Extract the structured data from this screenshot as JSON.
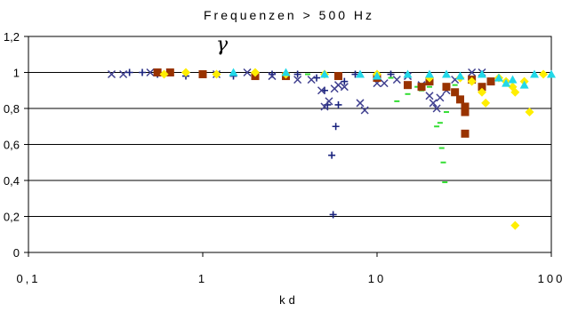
{
  "chart_data": {
    "type": "scatter",
    "title": "Frequenzen > 500 Hz",
    "xlabel": "kd",
    "ylabel": "γ",
    "xscale": "log",
    "xlim": [
      0.1,
      100
    ],
    "ylim": [
      0,
      1.2
    ],
    "xticks": [
      "0,1",
      "1",
      "10",
      "100"
    ],
    "yticks": [
      "0",
      "0,2",
      "0,4",
      "0,6",
      "0,8",
      "1",
      "1,2"
    ],
    "grid": "horizontal",
    "legend": "none",
    "series": [
      {
        "marker": "plus",
        "color": "#1a237e",
        "points": [
          [
            0.38,
            1.0
          ],
          [
            0.45,
            1.0
          ],
          [
            0.55,
            0.99
          ],
          [
            0.8,
            0.98
          ],
          [
            1.5,
            0.98
          ],
          [
            2.5,
            0.99
          ],
          [
            3.5,
            0.99
          ],
          [
            4.5,
            0.97
          ],
          [
            5,
            0.9
          ],
          [
            5.2,
            0.82
          ],
          [
            5.5,
            0.54
          ],
          [
            5.6,
            0.21
          ],
          [
            5.8,
            0.7
          ],
          [
            6,
            0.82
          ],
          [
            6.5,
            0.95
          ],
          [
            7.5,
            0.99
          ],
          [
            10,
            0.97
          ],
          [
            12,
            0.99
          ]
        ]
      },
      {
        "marker": "x",
        "color": "#3f3f8f",
        "points": [
          [
            0.3,
            0.99
          ],
          [
            0.35,
            0.99
          ],
          [
            0.5,
            1.0
          ],
          [
            1.2,
            0.99
          ],
          [
            1.8,
            1.0
          ],
          [
            2.5,
            0.98
          ],
          [
            3.5,
            0.96
          ],
          [
            4.2,
            0.96
          ],
          [
            4.8,
            0.9
          ],
          [
            5,
            0.81
          ],
          [
            5.3,
            0.84
          ],
          [
            5.7,
            0.91
          ],
          [
            6,
            0.93
          ],
          [
            6.5,
            0.92
          ],
          [
            8,
            0.83
          ],
          [
            8.5,
            0.79
          ],
          [
            10,
            0.94
          ],
          [
            11,
            0.94
          ],
          [
            13,
            0.96
          ],
          [
            15,
            0.98
          ],
          [
            18,
            0.93
          ],
          [
            20,
            0.87
          ],
          [
            21,
            0.83
          ],
          [
            22,
            0.8
          ],
          [
            23,
            0.86
          ],
          [
            25,
            0.9
          ],
          [
            28,
            0.96
          ],
          [
            35,
            1.0
          ],
          [
            40,
            1.0
          ]
        ]
      },
      {
        "marker": "dash",
        "color": "#33dd33",
        "points": [
          [
            1,
            0.98
          ],
          [
            2,
            0.99
          ],
          [
            4,
            0.99
          ],
          [
            8,
            0.98
          ],
          [
            12,
            0.97
          ],
          [
            13,
            0.84
          ],
          [
            15,
            0.88
          ],
          [
            17,
            0.92
          ],
          [
            18,
            0.9
          ],
          [
            20,
            0.92
          ],
          [
            22,
            0.7
          ],
          [
            23,
            0.72
          ],
          [
            23.5,
            0.58
          ],
          [
            24,
            0.5
          ],
          [
            24.5,
            0.39
          ],
          [
            25,
            0.78
          ],
          [
            28,
            0.93
          ]
        ]
      },
      {
        "marker": "square",
        "color": "#993300",
        "points": [
          [
            0.55,
            1.0
          ],
          [
            0.65,
            1.0
          ],
          [
            1,
            0.99
          ],
          [
            2,
            0.98
          ],
          [
            3,
            0.98
          ],
          [
            6,
            0.98
          ],
          [
            10,
            0.97
          ],
          [
            15,
            0.93
          ],
          [
            18,
            0.92
          ],
          [
            20,
            0.95
          ],
          [
            25,
            0.92
          ],
          [
            28,
            0.89
          ],
          [
            30,
            0.85
          ],
          [
            32,
            0.81
          ],
          [
            32,
            0.78
          ],
          [
            32,
            0.66
          ],
          [
            35,
            0.96
          ],
          [
            40,
            0.92
          ],
          [
            45,
            0.95
          ]
        ]
      },
      {
        "marker": "diamond",
        "color": "#ffee00",
        "points": [
          [
            0.6,
            0.99
          ],
          [
            0.8,
            1.0
          ],
          [
            1.2,
            0.99
          ],
          [
            2,
            1.0
          ],
          [
            3,
            0.99
          ],
          [
            5,
            0.99
          ],
          [
            10,
            0.99
          ],
          [
            20,
            0.97
          ],
          [
            30,
            0.97
          ],
          [
            35,
            0.95
          ],
          [
            40,
            0.89
          ],
          [
            42,
            0.83
          ],
          [
            50,
            0.97
          ],
          [
            55,
            0.95
          ],
          [
            60,
            0.92
          ],
          [
            62,
            0.89
          ],
          [
            62,
            0.15
          ],
          [
            70,
            0.95
          ],
          [
            75,
            0.78
          ],
          [
            90,
            0.99
          ]
        ]
      },
      {
        "marker": "triangle",
        "color": "#22d8e8",
        "points": [
          [
            1.5,
            1.0
          ],
          [
            3,
            1.0
          ],
          [
            5,
            0.99
          ],
          [
            8,
            0.99
          ],
          [
            10,
            0.98
          ],
          [
            15,
            0.99
          ],
          [
            20,
            0.99
          ],
          [
            25,
            0.99
          ],
          [
            30,
            0.98
          ],
          [
            40,
            0.99
          ],
          [
            50,
            0.97
          ],
          [
            55,
            0.94
          ],
          [
            60,
            0.96
          ],
          [
            70,
            0.93
          ],
          [
            80,
            0.99
          ],
          [
            100,
            0.99
          ]
        ]
      }
    ]
  }
}
